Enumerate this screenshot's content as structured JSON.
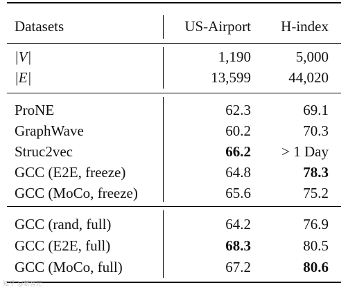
{
  "header": {
    "datasets": "Datasets",
    "us_airport": "US-Airport",
    "h_index": "H-index"
  },
  "stats": [
    {
      "name": "|V|",
      "us_airport": "1,190",
      "h_index": "5,000"
    },
    {
      "name": "|E|",
      "us_airport": "13,599",
      "h_index": "44,020"
    }
  ],
  "baselines": [
    {
      "name": "ProNE",
      "us_airport": "62.3",
      "h_index": "69.1",
      "bold_us": false,
      "bold_h": false
    },
    {
      "name": "GraphWave",
      "us_airport": "60.2",
      "h_index": "70.3",
      "bold_us": false,
      "bold_h": false
    },
    {
      "name": "Struc2vec",
      "us_airport": "66.2",
      "h_index": "> 1 Day",
      "bold_us": true,
      "bold_h": false
    },
    {
      "name": "GCC (E2E, freeze)",
      "us_airport": "64.8",
      "h_index": "78.3",
      "bold_us": false,
      "bold_h": true
    },
    {
      "name": "GCC (MoCo, freeze)",
      "us_airport": "65.6",
      "h_index": "75.2",
      "bold_us": false,
      "bold_h": false
    }
  ],
  "full": [
    {
      "name": "GCC (rand, full)",
      "us_airport": "64.2",
      "h_index": "76.9",
      "bold_us": false,
      "bold_h": false
    },
    {
      "name": "GCC (E2E, full)",
      "us_airport": "68.3",
      "h_index": "80.5",
      "bold_us": true,
      "bold_h": false
    },
    {
      "name": "GCC (MoCo, full)",
      "us_airport": "67.2",
      "h_index": "80.6",
      "bold_us": false,
      "bold_h": true
    }
  ],
  "watermark": "知乎 @新智元"
}
